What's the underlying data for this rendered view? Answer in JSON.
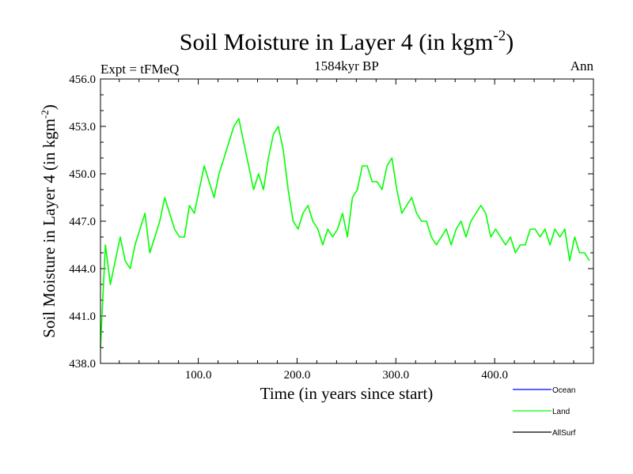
{
  "chart_data": {
    "type": "line",
    "title": "Soil Moisture in Layer 4 (in kgm",
    "title_sup": "-2",
    "title_close": ")",
    "subtitle_left": "Expt = tFMeQ",
    "subtitle_center": "1584kyr BP",
    "subtitle_right": "Ann",
    "xlabel": "Time (in years since start)",
    "ylabel": "Soil Moisture in Layer 4 (in kgm",
    "ylabel_sup": "-2",
    "ylabel_close": ")",
    "xlim": [
      1,
      500
    ],
    "ylim": [
      438.0,
      456.0
    ],
    "xticks": [
      100,
      200,
      300,
      400
    ],
    "xtick_labels": [
      "100.0",
      "200.0",
      "300.0",
      "400.0"
    ],
    "yticks": [
      438,
      441,
      444,
      447,
      450,
      453,
      456
    ],
    "ytick_labels": [
      "438.0",
      "441.0",
      "444.0",
      "447.0",
      "450.0",
      "453.0",
      "456.0"
    ],
    "legend": [
      {
        "name": "Ocean",
        "color": "#0000ff"
      },
      {
        "name": "Land",
        "color": "#00ff00"
      },
      {
        "name": "AllSurf",
        "color": "#000000"
      }
    ],
    "series": [
      {
        "name": "Land",
        "color": "#00ff00",
        "x_start": 1,
        "x_step": 5,
        "values": [
          439.0,
          445.5,
          443.0,
          444.5,
          446.0,
          444.5,
          444.0,
          445.5,
          446.5,
          447.5,
          445.0,
          446.0,
          447.0,
          448.5,
          447.5,
          446.5,
          446.0,
          446.0,
          448.0,
          447.5,
          449.0,
          450.5,
          449.5,
          448.5,
          450.0,
          451.0,
          452.0,
          453.0,
          453.5,
          452.0,
          450.5,
          449.0,
          450.0,
          449.0,
          451.0,
          452.5,
          453.0,
          451.5,
          449.0,
          447.0,
          446.5,
          447.5,
          448.0,
          447.0,
          446.5,
          445.5,
          446.5,
          446.0,
          446.5,
          447.5,
          446.0,
          448.5,
          449.0,
          450.5,
          450.5,
          449.5,
          449.5,
          449.0,
          450.5,
          451.0,
          449.0,
          447.5,
          448.0,
          448.5,
          447.5,
          447.0,
          447.0,
          446.0,
          445.5,
          446.0,
          446.5,
          445.5,
          446.5,
          447.0,
          446.0,
          447.0,
          447.5,
          448.0,
          447.5,
          446.0,
          446.5,
          446.0,
          445.5,
          446.0,
          445.0,
          445.5,
          445.5,
          446.5,
          446.5,
          446.0,
          446.5,
          445.5,
          446.5,
          446.0,
          446.5,
          444.5,
          446.0,
          445.0,
          445.0,
          444.5
        ]
      }
    ]
  }
}
